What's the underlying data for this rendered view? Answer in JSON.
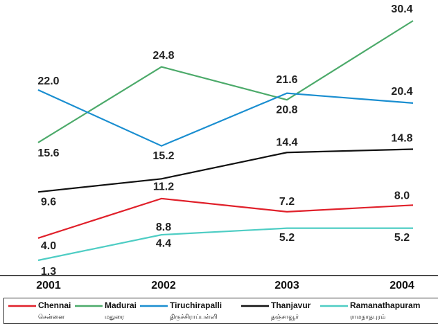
{
  "chart_data": {
    "type": "line",
    "categories": [
      "2001",
      "2002",
      "2003",
      "2004"
    ],
    "series": [
      {
        "name": "Chennai",
        "name_local": "சென்னை",
        "color": "#e0202a",
        "values": [
          4.0,
          8.8,
          7.2,
          8.0
        ],
        "value_labels": [
          "4.0",
          "8.8",
          "7.2",
          "8.0"
        ]
      },
      {
        "name": "Madurai",
        "name_local": "மதுரை",
        "color": "#4caa6a",
        "values": [
          15.6,
          24.8,
          20.8,
          30.4
        ],
        "value_labels": [
          "15.6",
          "24.8",
          "20.8",
          "30.4"
        ]
      },
      {
        "name": "Tiruchirapalli",
        "name_local": "திருச்சிராப்பள்ளி",
        "color": "#1a8ed0",
        "values": [
          22.0,
          15.2,
          21.6,
          20.4
        ],
        "value_labels": [
          "22.0",
          "15.2",
          "21.6",
          "20.4"
        ]
      },
      {
        "name": "Thanjavur",
        "name_local": "தஞ்சாவூர்",
        "color": "#111111",
        "values": [
          9.6,
          11.2,
          14.4,
          14.8
        ],
        "value_labels": [
          "9.6",
          "11.2",
          "14.4",
          "14.8"
        ]
      },
      {
        "name": "Ramanathapuram",
        "name_local": "ராமநாதபுரம்",
        "color": "#4ecdc4",
        "values": [
          1.3,
          4.4,
          5.2,
          5.2
        ],
        "value_labels": [
          "1.3",
          "4.4",
          "5.2",
          "5.2"
        ]
      }
    ],
    "legend": "bottom"
  }
}
